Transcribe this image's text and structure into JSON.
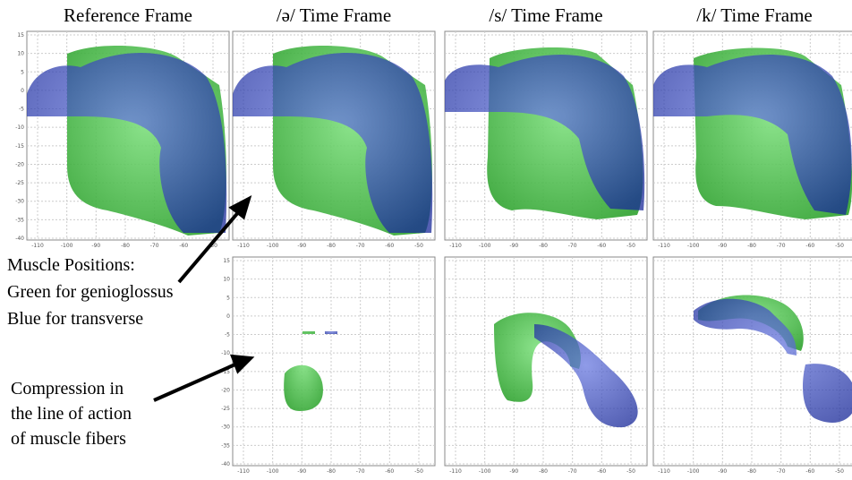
{
  "panels": {
    "titles": [
      "Reference Frame",
      "/ə/ Time Frame",
      "/s/ Time Frame",
      "/k/ Time Frame"
    ]
  },
  "axes": {
    "xtick_labels": [
      "-110",
      "-100",
      "-90",
      "-80",
      "-70",
      "-60",
      "-50"
    ],
    "ytick_labels": [
      "15",
      "10",
      "5",
      "0",
      "-5",
      "-10",
      "-15",
      "-20",
      "-25",
      "-30",
      "-35",
      "-40"
    ]
  },
  "annotations": {
    "muscle_positions": [
      "Muscle Positions:",
      "Green for genioglossus",
      "Blue for transverse"
    ],
    "compression": [
      "Compression in",
      "the line of action",
      "of muscle fibers"
    ]
  }
}
